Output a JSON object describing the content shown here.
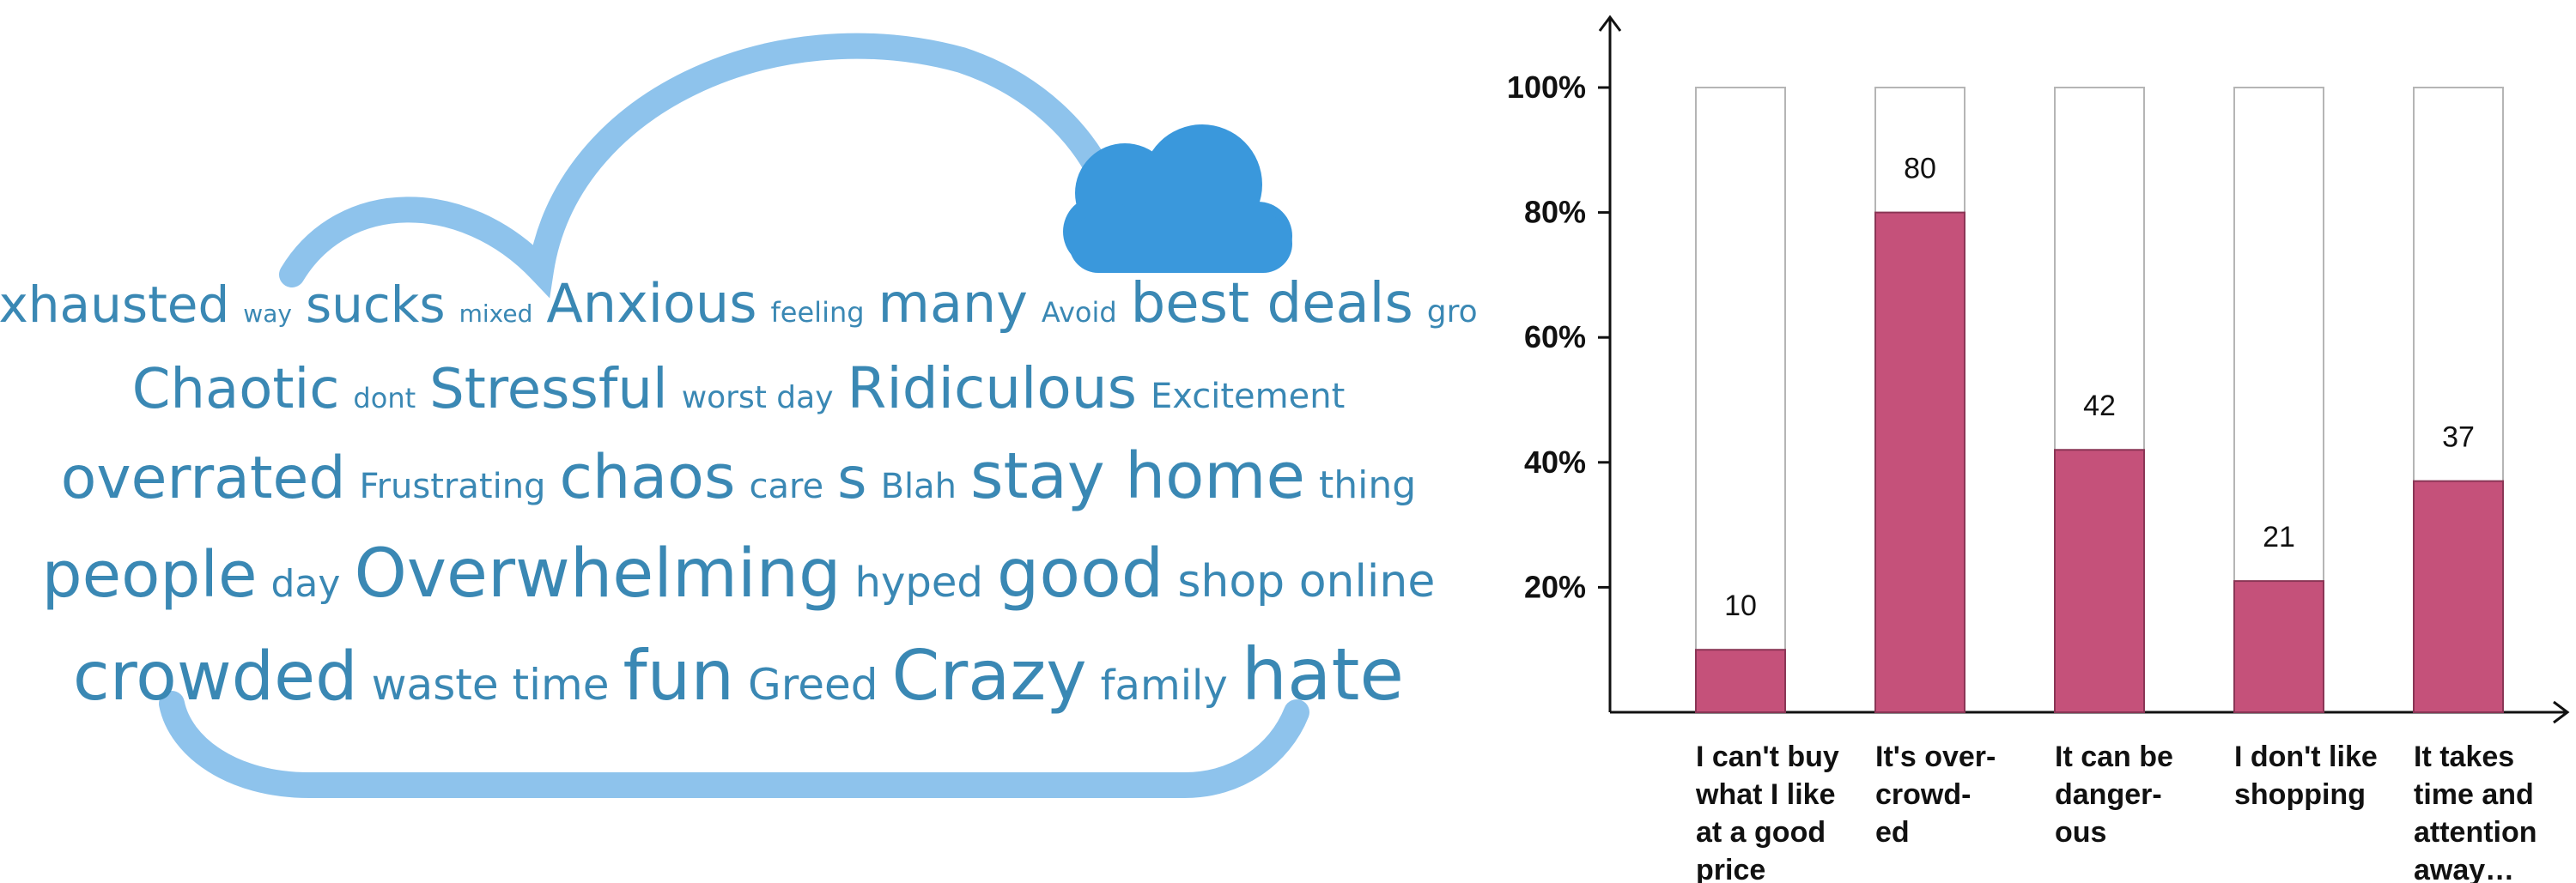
{
  "wordcloud": {
    "colors": {
      "cloud_outline": "#8ec3ec",
      "cloud_icon": "#3a98dc",
      "word": "#3a88b4"
    },
    "lines": [
      [
        "Exhausted",
        "way",
        "sucks",
        "mixed",
        "Anxious",
        "feeling",
        "many",
        "Avoid",
        "best deals",
        "gross"
      ],
      [
        "Chaotic",
        "dont",
        "Stressful",
        "worst day",
        "Ridiculous",
        "Excitement"
      ],
      [
        "overrated",
        "Frustrating",
        "chaos",
        "care",
        "s",
        "Blah",
        "stay home",
        "thing"
      ],
      [
        "people",
        "day",
        "Overwhelming",
        "hyped",
        "good",
        "shop online"
      ],
      [
        "crowded",
        "waste time",
        "fun",
        "Greed",
        "Crazy",
        "family",
        "hate"
      ]
    ]
  },
  "chart_data": {
    "type": "bar",
    "stacked_100": true,
    "categories": [
      [
        "I can't buy",
        "what I like",
        "at a good",
        "price"
      ],
      [
        "It's over-",
        "crowd-",
        "ed"
      ],
      [
        "It can be",
        "danger-",
        "ous"
      ],
      [
        "I don't like",
        "shopping"
      ],
      [
        "It takes",
        "time and",
        "attention",
        "away…"
      ]
    ],
    "values": [
      10,
      80,
      42,
      21,
      37
    ],
    "value_labels": [
      "10",
      "80",
      "42",
      "21",
      "37"
    ],
    "ylim": [
      0,
      100
    ],
    "yticks": [
      "20%",
      "40%",
      "60%",
      "80%",
      "100%"
    ],
    "ytick_values": [
      20,
      40,
      60,
      80,
      100
    ],
    "colors": {
      "bar": "#c5517a",
      "bar_border": "#8a3656",
      "remainder": "#ffffff",
      "remainder_border": "#b5b5b5",
      "axis": "#111111"
    },
    "title": "",
    "xlabel": "",
    "ylabel": ""
  }
}
